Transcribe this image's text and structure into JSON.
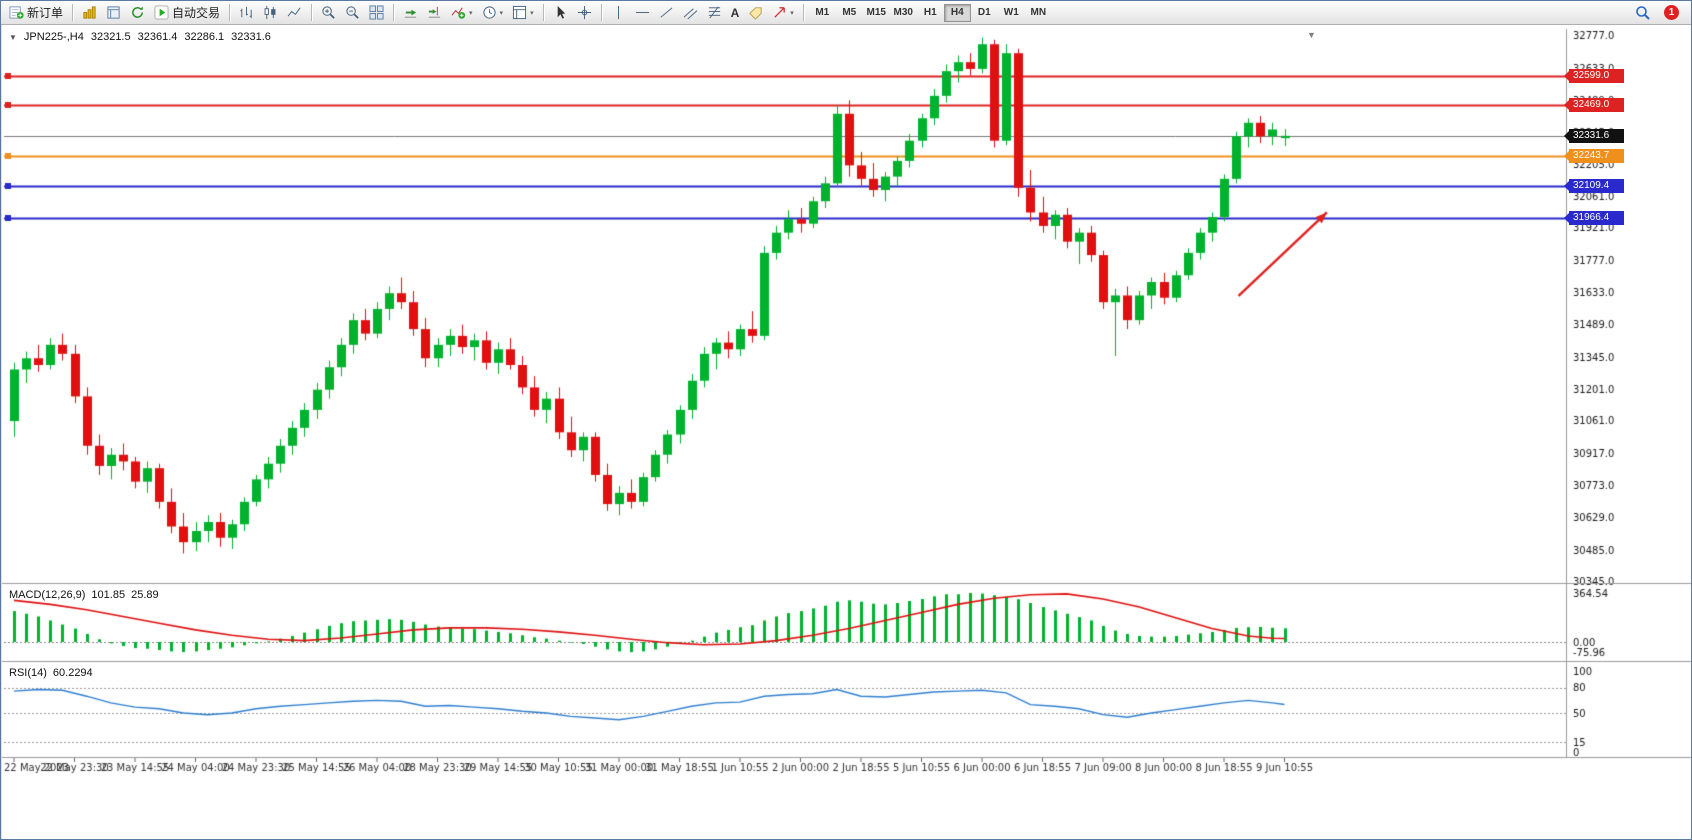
{
  "toolbar": {
    "new_order_label": "新订单",
    "autotrading_label": "自动交易",
    "timeframes": [
      "M1",
      "M5",
      "M15",
      "M30",
      "H1",
      "H4",
      "D1",
      "W1",
      "MN"
    ],
    "active_timeframe": "H4",
    "notification_count": "1"
  },
  "chart": {
    "title": {
      "symbol_period": "JPN225-,H4",
      "open": "32321.5",
      "high": "32361.4",
      "low": "32286.1",
      "close": "32331.6"
    },
    "price_axis": {
      "labels": [
        "32777.0",
        "32633.0",
        "32489.0",
        "32345.0",
        "32205.0",
        "32061.0",
        "31921.0",
        "31777.0",
        "31633.0",
        "31489.0",
        "31345.0",
        "31201.0",
        "31061.0",
        "30917.0",
        "30773.0",
        "30629.0",
        "30485.0",
        "30345.0"
      ]
    },
    "price_lines": [
      {
        "price": 32599.0,
        "label": "32599.0",
        "color": "#dd2222",
        "is_current_price": false
      },
      {
        "price": 32469.0,
        "label": "32469.0",
        "color": "#dd2222",
        "is_current_price": false
      },
      {
        "price": 32331.6,
        "label": "32331.6",
        "color": "#111111",
        "is_current_price": true
      },
      {
        "price": 32243.7,
        "label": "32243.7",
        "color": "#ef8f1c",
        "is_current_price": false
      },
      {
        "price": 32109.4,
        "label": "32109.4",
        "color": "#2929cc",
        "is_current_price": false
      },
      {
        "price": 31966.4,
        "label": "31966.4",
        "color": "#2929cc",
        "is_current_price": false
      }
    ],
    "time_axis": {
      "step_bars": 5,
      "labels": [
        "22 May 2023",
        "22 May 23:30",
        "23 May 14:55",
        "24 May 04:00",
        "24 May 23:30",
        "25 May 14:55",
        "26 May 04:00",
        "28 May 23:30",
        "29 May 14:55",
        "30 May 10:55",
        "31 May 00:00",
        "31 May 18:55",
        "1 Jun 10:55",
        "2 Jun 00:00",
        "2 Jun 18:55",
        "5 Jun 10:55",
        "6 Jun 00:00",
        "6 Jun 18:55",
        "7 Jun 09:00",
        "8 Jun 00:00",
        "8 Jun 18:55",
        "9 Jun 10:55"
      ]
    },
    "annotation_arrow": {
      "from_bar": 101.2,
      "from_price": 31618,
      "to_bar": 108.5,
      "to_price": 31990,
      "color": "#e02020"
    }
  },
  "chart_data": {
    "type": "candlestick",
    "symbol": "JPN225-",
    "timeframe": "H4",
    "colors": {
      "up": "#00b22d",
      "down": "#e01010",
      "macd_histogram": "#00b22d",
      "macd_signal": "#e01010",
      "rsi_line": "#2e7fd0"
    },
    "candles": [
      [
        31060,
        31320,
        30990,
        31290
      ],
      [
        31290,
        31370,
        31230,
        31340
      ],
      [
        31340,
        31400,
        31280,
        31310
      ],
      [
        31310,
        31430,
        31290,
        31400
      ],
      [
        31400,
        31450,
        31330,
        31360
      ],
      [
        31360,
        31400,
        31140,
        31170
      ],
      [
        31170,
        31210,
        30910,
        30950
      ],
      [
        30950,
        31000,
        30820,
        30860
      ],
      [
        30860,
        30940,
        30800,
        30910
      ],
      [
        30910,
        30960,
        30840,
        30880
      ],
      [
        30880,
        30900,
        30760,
        30790
      ],
      [
        30790,
        30880,
        30740,
        30850
      ],
      [
        30850,
        30870,
        30670,
        30700
      ],
      [
        30700,
        30760,
        30560,
        30590
      ],
      [
        30590,
        30650,
        30470,
        30520
      ],
      [
        30520,
        30610,
        30480,
        30570
      ],
      [
        30570,
        30640,
        30520,
        30610
      ],
      [
        30610,
        30650,
        30500,
        30540
      ],
      [
        30540,
        30620,
        30490,
        30600
      ],
      [
        30600,
        30720,
        30570,
        30700
      ],
      [
        30700,
        30820,
        30680,
        30800
      ],
      [
        30800,
        30900,
        30760,
        30870
      ],
      [
        30870,
        30980,
        30830,
        30950
      ],
      [
        30950,
        31060,
        30910,
        31030
      ],
      [
        31030,
        31140,
        30990,
        31110
      ],
      [
        31110,
        31230,
        31070,
        31200
      ],
      [
        31200,
        31330,
        31160,
        31300
      ],
      [
        31300,
        31430,
        31260,
        31400
      ],
      [
        31400,
        31540,
        31360,
        31510
      ],
      [
        31510,
        31560,
        31420,
        31450
      ],
      [
        31450,
        31590,
        31430,
        31560
      ],
      [
        31560,
        31660,
        31510,
        31630
      ],
      [
        31630,
        31700,
        31560,
        31590
      ],
      [
        31590,
        31640,
        31440,
        31470
      ],
      [
        31470,
        31520,
        31300,
        31340
      ],
      [
        31340,
        31430,
        31300,
        31400
      ],
      [
        31400,
        31470,
        31350,
        31440
      ],
      [
        31440,
        31490,
        31360,
        31390
      ],
      [
        31390,
        31450,
        31330,
        31420
      ],
      [
        31420,
        31460,
        31290,
        31320
      ],
      [
        31320,
        31410,
        31270,
        31380
      ],
      [
        31380,
        31430,
        31290,
        31310
      ],
      [
        31310,
        31350,
        31180,
        31210
      ],
      [
        31210,
        31260,
        31080,
        31110
      ],
      [
        31110,
        31190,
        31050,
        31160
      ],
      [
        31160,
        31210,
        30980,
        31010
      ],
      [
        31010,
        31080,
        30900,
        30930
      ],
      [
        30930,
        31010,
        30880,
        30990
      ],
      [
        30990,
        31010,
        30790,
        30820
      ],
      [
        30820,
        30870,
        30660,
        30690
      ],
      [
        30690,
        30770,
        30640,
        30740
      ],
      [
        30740,
        30800,
        30670,
        30700
      ],
      [
        30700,
        30830,
        30680,
        30810
      ],
      [
        30810,
        30930,
        30790,
        30910
      ],
      [
        30910,
        31020,
        30870,
        31000
      ],
      [
        31000,
        31130,
        30960,
        31110
      ],
      [
        31110,
        31270,
        31070,
        31240
      ],
      [
        31240,
        31390,
        31210,
        31360
      ],
      [
        31360,
        31430,
        31290,
        31410
      ],
      [
        31410,
        31460,
        31340,
        31380
      ],
      [
        31380,
        31490,
        31350,
        31470
      ],
      [
        31470,
        31550,
        31410,
        31440
      ],
      [
        31440,
        31840,
        31420,
        31810
      ],
      [
        31810,
        31930,
        31780,
        31900
      ],
      [
        31900,
        32000,
        31870,
        31960
      ],
      [
        31960,
        32010,
        31900,
        31940
      ],
      [
        31940,
        32060,
        31920,
        32040
      ],
      [
        32040,
        32150,
        32010,
        32120
      ],
      [
        32120,
        32470,
        32100,
        32430
      ],
      [
        32430,
        32490,
        32150,
        32200
      ],
      [
        32200,
        32260,
        32110,
        32140
      ],
      [
        32140,
        32210,
        32060,
        32090
      ],
      [
        32090,
        32170,
        32040,
        32150
      ],
      [
        32150,
        32240,
        32110,
        32220
      ],
      [
        32220,
        32340,
        32190,
        32310
      ],
      [
        32310,
        32430,
        32280,
        32410
      ],
      [
        32410,
        32540,
        32380,
        32510
      ],
      [
        32510,
        32650,
        32480,
        32620
      ],
      [
        32620,
        32690,
        32570,
        32660
      ],
      [
        32660,
        32700,
        32600,
        32630
      ],
      [
        32630,
        32770,
        32610,
        32740
      ],
      [
        32740,
        32760,
        32280,
        32310
      ],
      [
        32310,
        32740,
        32290,
        32700
      ],
      [
        32700,
        32720,
        32060,
        32100
      ],
      [
        32100,
        32180,
        31950,
        31990
      ],
      [
        31990,
        32060,
        31900,
        31930
      ],
      [
        31930,
        32000,
        31870,
        31980
      ],
      [
        31980,
        32010,
        31830,
        31860
      ],
      [
        31860,
        31920,
        31760,
        31900
      ],
      [
        31900,
        31930,
        31770,
        31800
      ],
      [
        31800,
        31820,
        31560,
        31590
      ],
      [
        31590,
        31650,
        31350,
        31620
      ],
      [
        31620,
        31660,
        31470,
        31510
      ],
      [
        31510,
        31640,
        31490,
        31620
      ],
      [
        31620,
        31700,
        31560,
        31680
      ],
      [
        31680,
        31720,
        31580,
        31610
      ],
      [
        31610,
        31730,
        31590,
        31710
      ],
      [
        31710,
        31830,
        31690,
        31810
      ],
      [
        31810,
        31920,
        31780,
        31900
      ],
      [
        31900,
        31990,
        31860,
        31970
      ],
      [
        31970,
        32160,
        31950,
        32140
      ],
      [
        32140,
        32350,
        32120,
        32330
      ],
      [
        32330,
        32410,
        32280,
        32390
      ],
      [
        32390,
        32420,
        32300,
        32330
      ],
      [
        32330,
        32390,
        32290,
        32360
      ],
      [
        32321.5,
        32361.4,
        32286.1,
        32331.6
      ]
    ],
    "indicators": {
      "macd": {
        "title": "MACD(12,26,9)",
        "main_value": "101.85",
        "signal_value": "25.89",
        "axis_labels": [
          "364.54",
          "0.00",
          "-75.96"
        ],
        "histogram": [
          230,
          210,
          190,
          160,
          130,
          100,
          60,
          20,
          -10,
          -30,
          -45,
          -50,
          -60,
          -70,
          -75,
          -70,
          -60,
          -50,
          -40,
          -25,
          -10,
          5,
          25,
          45,
          70,
          95,
          120,
          140,
          155,
          160,
          165,
          170,
          165,
          150,
          130,
          115,
          105,
          100,
          95,
          85,
          75,
          65,
          50,
          35,
          25,
          10,
          -5,
          -15,
          -35,
          -55,
          -70,
          -76,
          -70,
          -55,
          -35,
          -15,
          10,
          40,
          70,
          90,
          110,
          125,
          160,
          190,
          215,
          230,
          250,
          270,
          300,
          310,
          300,
          285,
          280,
          290,
          305,
          320,
          340,
          355,
          355,
          364.5,
          360,
          348,
          336,
          318,
          290,
          260,
          235,
          210,
          185,
          160,
          120,
          85,
          60,
          45,
          40,
          40,
          45,
          55,
          65,
          75,
          90,
          105,
          110,
          112,
          106,
          101.85
        ],
        "signal_points": [
          [
            0,
            310
          ],
          [
            3,
            280
          ],
          [
            6,
            240
          ],
          [
            9,
            190
          ],
          [
            12,
            140
          ],
          [
            15,
            90
          ],
          [
            18,
            50
          ],
          [
            21,
            20
          ],
          [
            24,
            10
          ],
          [
            27,
            30
          ],
          [
            30,
            60
          ],
          [
            33,
            90
          ],
          [
            36,
            105
          ],
          [
            39,
            105
          ],
          [
            42,
            95
          ],
          [
            45,
            75
          ],
          [
            48,
            50
          ],
          [
            51,
            20
          ],
          [
            54,
            -5
          ],
          [
            57,
            -20
          ],
          [
            60,
            -15
          ],
          [
            63,
            10
          ],
          [
            66,
            50
          ],
          [
            69,
            100
          ],
          [
            72,
            160
          ],
          [
            75,
            220
          ],
          [
            78,
            280
          ],
          [
            81,
            325
          ],
          [
            84,
            352
          ],
          [
            87,
            358
          ],
          [
            90,
            320
          ],
          [
            93,
            260
          ],
          [
            96,
            180
          ],
          [
            99,
            100
          ],
          [
            102,
            45
          ],
          [
            104,
            28
          ],
          [
            105,
            26
          ]
        ]
      },
      "rsi": {
        "title": "RSI(14)",
        "value": "60.2294",
        "axis_labels": [
          "100",
          "80",
          "50",
          "15",
          "0"
        ],
        "levels": [
          80,
          50,
          15
        ],
        "points": [
          [
            0,
            76
          ],
          [
            2,
            78
          ],
          [
            4,
            77
          ],
          [
            6,
            70
          ],
          [
            8,
            62
          ],
          [
            10,
            57
          ],
          [
            12,
            55
          ],
          [
            14,
            50
          ],
          [
            16,
            48
          ],
          [
            18,
            50
          ],
          [
            20,
            55
          ],
          [
            22,
            58
          ],
          [
            24,
            60
          ],
          [
            26,
            62
          ],
          [
            28,
            64
          ],
          [
            30,
            65
          ],
          [
            32,
            64
          ],
          [
            34,
            58
          ],
          [
            36,
            59
          ],
          [
            38,
            57
          ],
          [
            40,
            55
          ],
          [
            42,
            52
          ],
          [
            44,
            50
          ],
          [
            46,
            46
          ],
          [
            48,
            44
          ],
          [
            50,
            42
          ],
          [
            52,
            46
          ],
          [
            54,
            52
          ],
          [
            56,
            58
          ],
          [
            58,
            62
          ],
          [
            60,
            63
          ],
          [
            62,
            70
          ],
          [
            64,
            72
          ],
          [
            66,
            73
          ],
          [
            68,
            78
          ],
          [
            70,
            70
          ],
          [
            72,
            69
          ],
          [
            74,
            72
          ],
          [
            76,
            75
          ],
          [
            78,
            76
          ],
          [
            80,
            77
          ],
          [
            82,
            74
          ],
          [
            84,
            60
          ],
          [
            86,
            58
          ],
          [
            88,
            55
          ],
          [
            90,
            48
          ],
          [
            92,
            45
          ],
          [
            94,
            50
          ],
          [
            96,
            54
          ],
          [
            98,
            58
          ],
          [
            100,
            62
          ],
          [
            102,
            65
          ],
          [
            104,
            62
          ],
          [
            105,
            60.2
          ]
        ]
      }
    }
  }
}
